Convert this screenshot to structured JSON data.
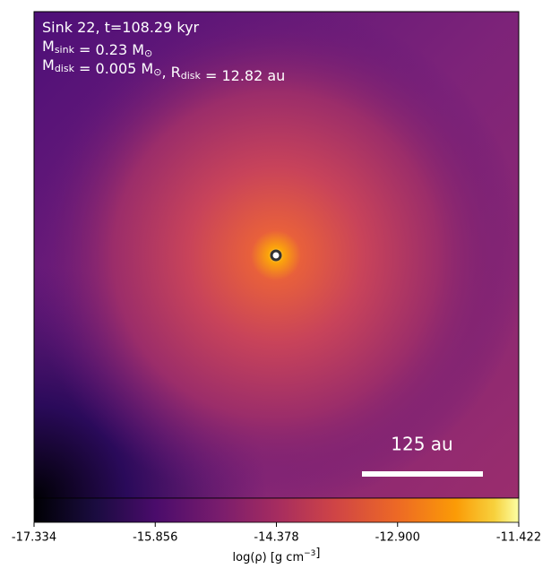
{
  "chart_data": {
    "type": "image",
    "annotations": [
      [
        {
          "t": "Sink 22, t=108.29 kyr"
        }
      ],
      [
        {
          "t": "M"
        },
        {
          "sub": "sink"
        },
        {
          "t": " = 0.23 M"
        },
        {
          "sub": "⊙"
        }
      ],
      [
        {
          "t": "M"
        },
        {
          "sub": "disk"
        },
        {
          "t": " = 0.005 M"
        },
        {
          "sub": "⊙"
        },
        {
          "t": ", R"
        },
        {
          "sub": "disk"
        },
        {
          "t": " = 12.82 au"
        }
      ]
    ],
    "scale_bar": "125 au",
    "colormap": "inferno",
    "clim": [
      -17.334,
      -11.422
    ],
    "cticks": [
      -17.334,
      -15.856,
      -14.378,
      {
        "value": -12.9,
        "label": "-12.900"
      },
      -11.422
    ],
    "colorbar_label": [
      {
        "t": "log(ρ) [g cm"
      },
      {
        "sup": "−3"
      },
      {
        "t": "]"
      }
    ]
  }
}
